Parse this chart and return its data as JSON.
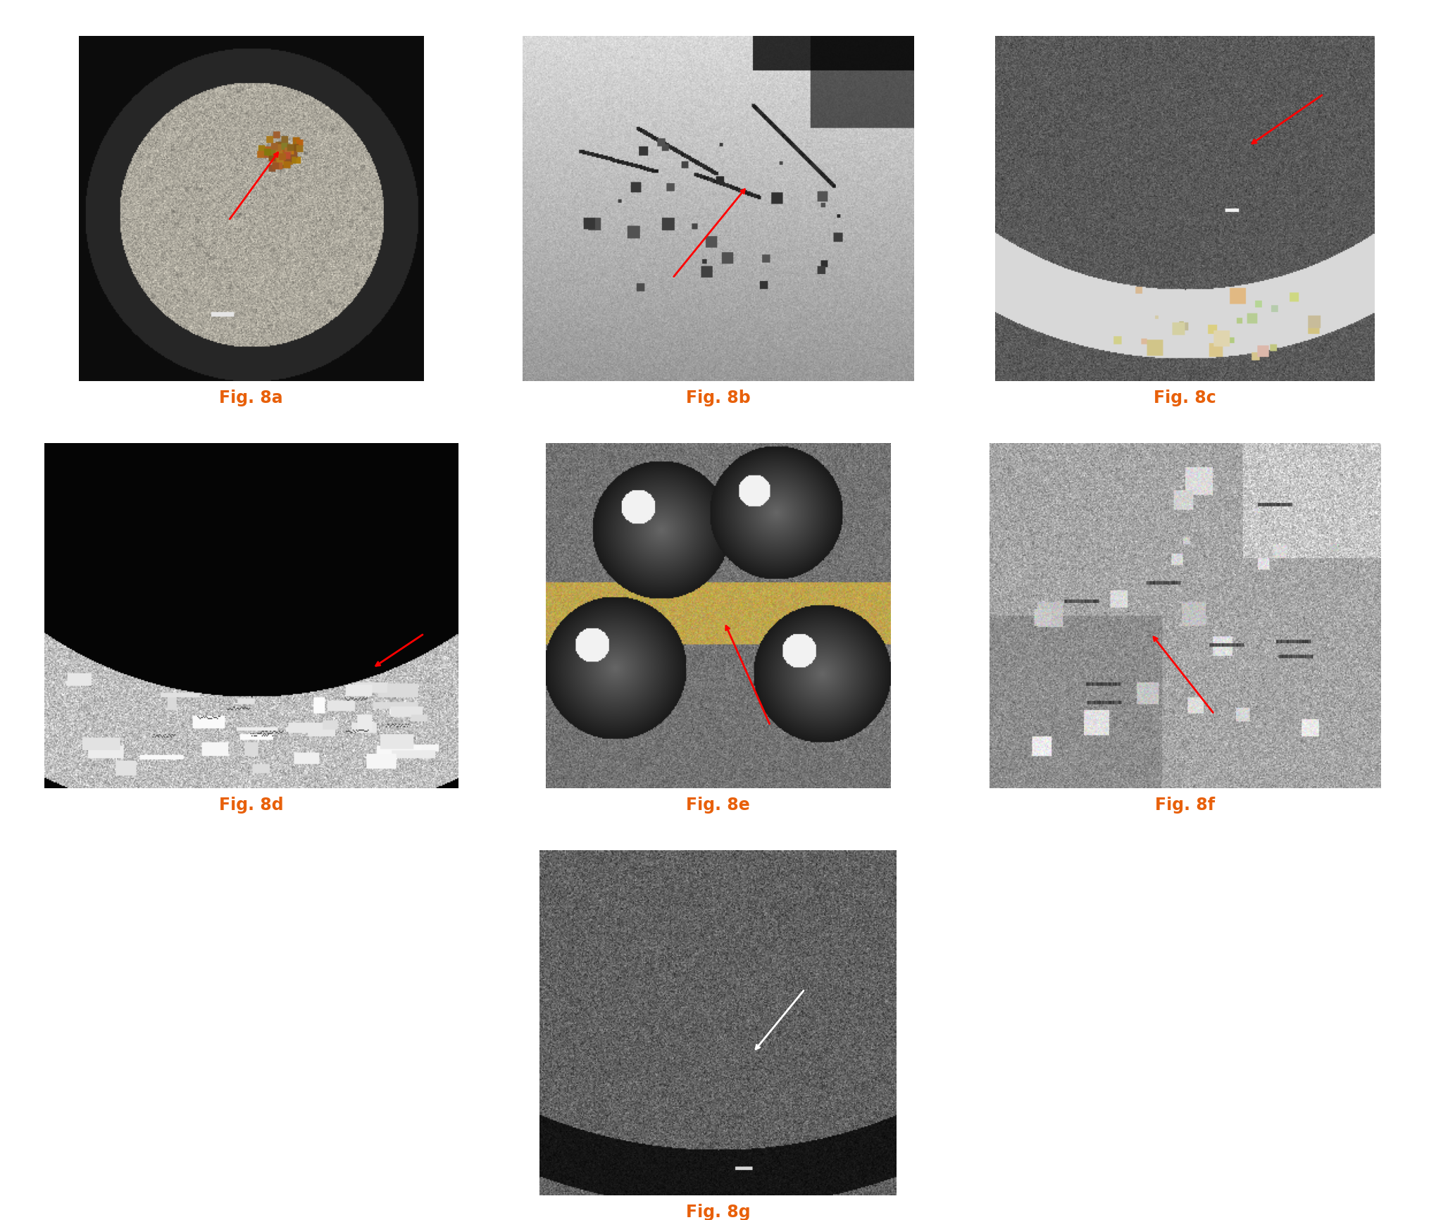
{
  "background_color": "#ffffff",
  "fig_width": 20.39,
  "fig_height": 17.33,
  "label_color": "#e8600a",
  "label_fontsize": 17,
  "label_fontweight": "bold",
  "labels": [
    "Fig. 8a",
    "Fig. 8b",
    "Fig. 8c",
    "Fig. 8d",
    "Fig. 8e",
    "Fig. 8f",
    "Fig. 8g"
  ],
  "grid_rows": 3,
  "grid_cols": 3,
  "images": [
    {
      "label": "Fig. 8a",
      "row": 0,
      "col": 0
    },
    {
      "label": "Fig. 8b",
      "row": 0,
      "col": 1
    },
    {
      "label": "Fig. 8c",
      "row": 0,
      "col": 2
    },
    {
      "label": "Fig. 8d",
      "row": 1,
      "col": 0
    },
    {
      "label": "Fig. 8e",
      "row": 1,
      "col": 1
    },
    {
      "label": "Fig. 8f",
      "row": 1,
      "col": 2
    },
    {
      "label": "Fig. 8g",
      "row": 2,
      "col": 1
    }
  ]
}
